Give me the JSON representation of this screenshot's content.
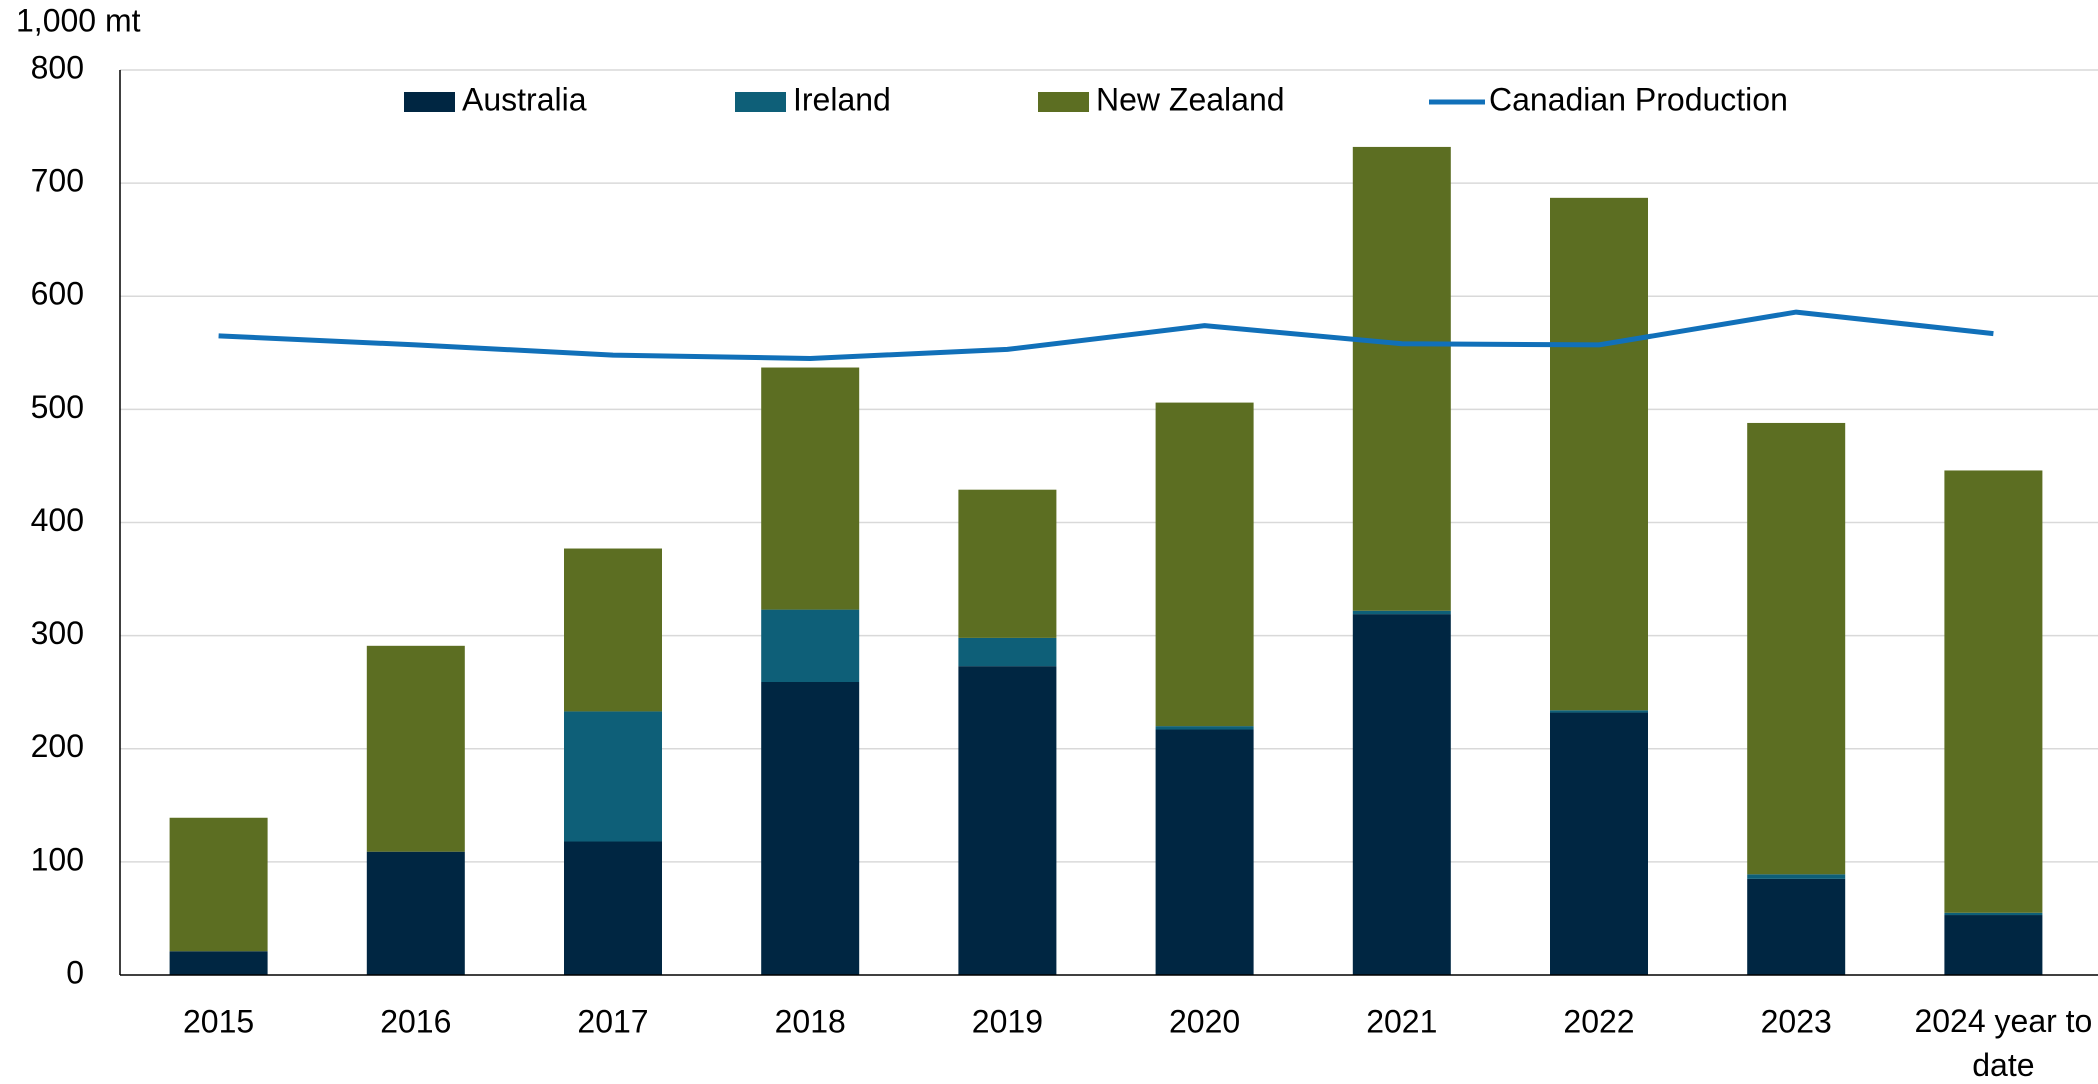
{
  "chart_data": {
    "type": "bar",
    "stacked": true,
    "y_label": "1,000 mt",
    "categories": [
      "2015",
      "2016",
      "2017",
      "2018",
      "2019",
      "2020",
      "2021",
      "2022",
      "2023",
      "2024 year to date"
    ],
    "series": [
      {
        "name": "Australia",
        "type": "bar",
        "color": "#002642",
        "values": [
          21,
          109,
          118,
          259,
          273,
          217,
          319,
          232,
          85,
          53
        ]
      },
      {
        "name": "Ireland",
        "type": "bar",
        "color": "#0e5f78",
        "values": [
          0,
          0,
          115,
          64,
          25,
          3,
          3,
          2,
          4,
          2
        ]
      },
      {
        "name": "New Zealand",
        "type": "bar",
        "color": "#5c6e22",
        "values": [
          118,
          182,
          144,
          214,
          131,
          286,
          410,
          453,
          399,
          391
        ]
      },
      {
        "name": "Canadian Production",
        "type": "line",
        "color": "#1170b9",
        "values": [
          565,
          557,
          548,
          545,
          553,
          574,
          558,
          557,
          586,
          567
        ]
      }
    ],
    "ylim": [
      0,
      800
    ],
    "yticks": [
      0,
      100,
      200,
      300,
      400,
      500,
      600,
      700,
      800
    ],
    "grid": true,
    "legend": "top"
  }
}
